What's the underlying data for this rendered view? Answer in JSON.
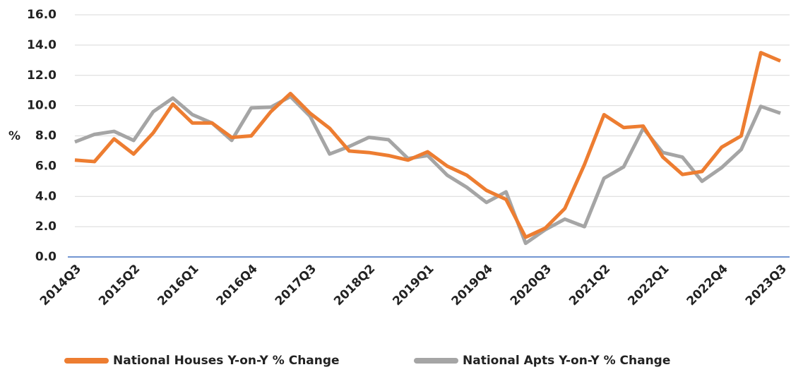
{
  "chart_data": {
    "type": "line",
    "y_label": "%",
    "categories": [
      "2014Q3",
      null,
      null,
      "2015Q2",
      null,
      null,
      "2016Q1",
      null,
      null,
      "2016Q4",
      null,
      null,
      "2017Q3",
      null,
      null,
      "2018Q2",
      null,
      null,
      "2019Q1",
      null,
      null,
      "2019Q4",
      null,
      null,
      "2020Q3",
      null,
      null,
      "2021Q2",
      null,
      null,
      "2022Q1",
      null,
      null,
      "2022Q4",
      null,
      null,
      "2023Q3"
    ],
    "series": [
      {
        "name": "National Houses Y-on-Y % Change",
        "color": "#ed7d31",
        "values": [
          6.4,
          6.3,
          7.8,
          6.8,
          8.2,
          10.1,
          8.85,
          8.85,
          7.9,
          8.0,
          9.6,
          10.8,
          9.5,
          8.5,
          7.0,
          6.9,
          6.7,
          6.4,
          6.95,
          6.0,
          5.4,
          4.4,
          3.8,
          1.3,
          1.9,
          3.2,
          6.1,
          9.4,
          8.55,
          8.65,
          6.6,
          5.45,
          5.65,
          7.25,
          8.0,
          13.5,
          12.95
        ]
      },
      {
        "name": "National Apts Y-on-Y % Change",
        "color": "#a5a5a5",
        "values": [
          7.6,
          8.1,
          8.3,
          7.7,
          9.6,
          10.5,
          9.4,
          8.85,
          7.7,
          9.85,
          9.9,
          10.6,
          9.3,
          6.8,
          7.3,
          7.9,
          7.75,
          6.5,
          6.7,
          5.4,
          4.6,
          3.6,
          4.3,
          0.9,
          1.8,
          2.5,
          2.0,
          5.2,
          5.95,
          8.5,
          6.9,
          6.6,
          5.0,
          5.9,
          7.1,
          9.95,
          9.5
        ]
      }
    ],
    "ylim": [
      0,
      16
    ],
    "yticks": [
      {
        "value": 0,
        "label": "0.0"
      },
      {
        "value": 2,
        "label": "2.0"
      },
      {
        "value": 4,
        "label": "4.0"
      },
      {
        "value": 6,
        "label": "6.0"
      },
      {
        "value": 8,
        "label": "8.0"
      },
      {
        "value": 10,
        "label": "10.0"
      },
      {
        "value": 12,
        "label": "12.0"
      },
      {
        "value": 14,
        "label": "14.0"
      },
      {
        "value": 16,
        "label": "16.0"
      }
    ],
    "grid": true,
    "axis_color": "#4472c4",
    "legend": "bottom"
  }
}
